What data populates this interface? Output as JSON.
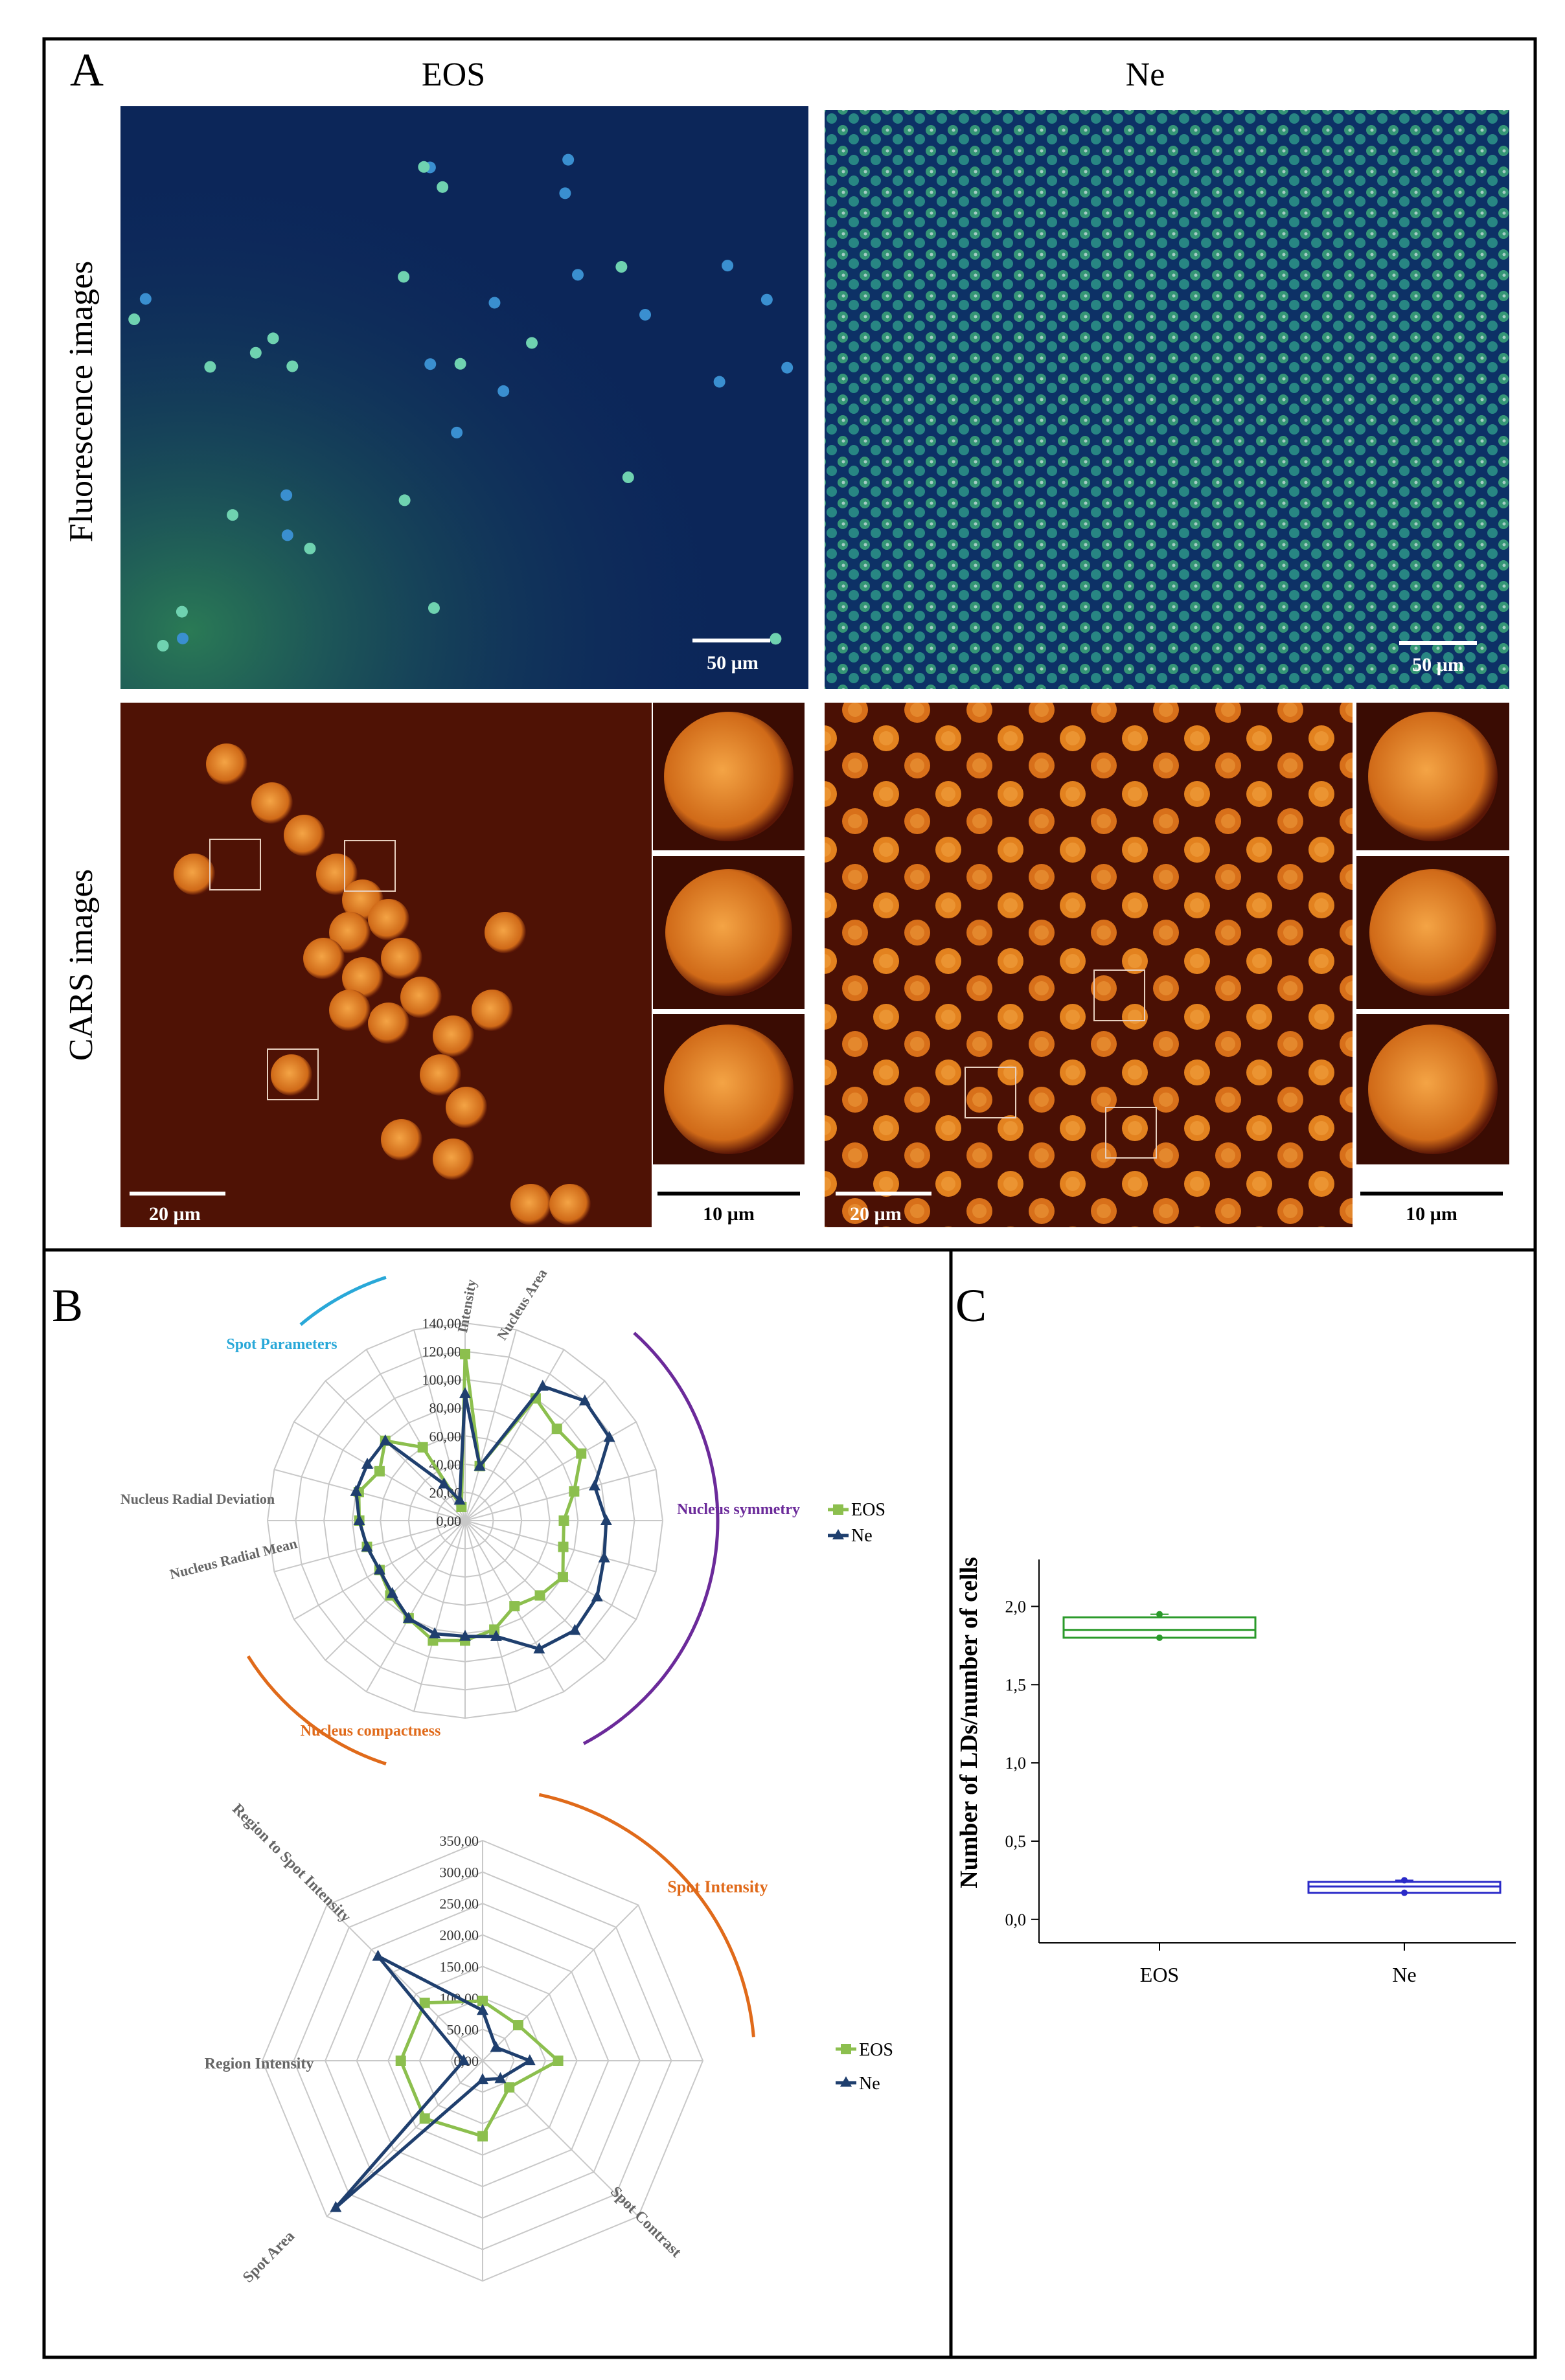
{
  "panel_a": {
    "letter": "A",
    "col_eos": "EOS",
    "col_ne": "Ne",
    "row_fluor": "Fluorescence  images",
    "row_cars": "CARS images",
    "scale_50": "50 µm",
    "scale_20": "20 µm",
    "scale_10": "10 µm",
    "colors": {
      "fluor_bg": "#0d2a5e",
      "cell_green": "#2fa870",
      "cars_bg": "#4a1004",
      "cell_orange": "#e07a1e"
    }
  },
  "panel_b": {
    "letter": "B",
    "radar1": {
      "group_labels": {
        "spot": "Spot Parameters",
        "symmetry": "Nucleus symmetry",
        "compactness": "Nucleus compactness"
      },
      "axis_labels": {
        "intensity": "Intensity",
        "nucleus_area": "Nucleus Area",
        "radial_dev": "Nucleus Radial Deviation",
        "radial_mean": "Nucleus Radial Mean"
      },
      "ticks": [
        "0,00",
        "20,00",
        "40,00",
        "60,00",
        "80,00",
        "100,00",
        "120,00",
        "140,00"
      ],
      "legend": {
        "eos": "EOS",
        "ne": "Ne"
      }
    },
    "radar2": {
      "group_labels": {
        "spot_intensity": "Spot Intensity"
      },
      "axis_labels": {
        "region_to_spot": "Region to Spot Intensity",
        "region_intensity": "Region Intensity",
        "spot_area": "Spot Area",
        "spot_contrast": "Spot Contrast"
      },
      "ticks": [
        "0,00",
        "50,00",
        "100,00",
        "150,00",
        "200,00",
        "250,00",
        "300,00",
        "350,00"
      ],
      "legend": {
        "eos": "EOS",
        "ne": "Ne"
      }
    }
  },
  "panel_c": {
    "letter": "C",
    "ylabel": "Number of LDs/number of cells",
    "categories": [
      "EOS",
      "Ne"
    ],
    "yticks": [
      "0,0",
      "0,5",
      "1,0",
      "1,5",
      "2,0"
    ]
  },
  "chart_data": [
    {
      "type": "radar",
      "axes_count": 24,
      "rmax": 140,
      "series": [
        {
          "name": "EOS",
          "color": "#8cbf4e",
          "values": [
            118,
            40,
            100,
            92,
            95,
            80,
            70,
            72,
            80,
            75,
            70,
            80,
            85,
            88,
            80,
            75,
            70,
            72,
            75,
            78,
            70,
            80,
            60,
            10
          ]
        },
        {
          "name": "Ne",
          "color": "#1f3f6e",
          "values": [
            90,
            40,
            110,
            120,
            118,
            95,
            100,
            102,
            108,
            110,
            105,
            85,
            82,
            83,
            80,
            73,
            70,
            72,
            75,
            80,
            80,
            80,
            30,
            15
          ]
        }
      ]
    },
    {
      "type": "radar",
      "axes_count": 8,
      "rmax": 350,
      "series": [
        {
          "name": "EOS",
          "color": "#8cbf4e",
          "values": [
            95,
            80,
            120,
            60,
            120,
            130,
            130,
            130
          ]
        },
        {
          "name": "Ne",
          "color": "#1f3f6e",
          "values": [
            80,
            30,
            75,
            40,
            30,
            330,
            30,
            235
          ]
        }
      ]
    },
    {
      "type": "box",
      "categories": [
        "EOS",
        "Ne"
      ],
      "ylim": [
        -0.15,
        2.3
      ],
      "series": [
        {
          "name": "EOS",
          "color": "#2a9a2a",
          "q1": 1.8,
          "median": 1.85,
          "q3": 1.93,
          "min": 1.8,
          "max": 1.95,
          "mean": 1.86
        },
        {
          "name": "Ne",
          "color": "#2a2ac8",
          "q1": 0.17,
          "median": 0.21,
          "q3": 0.24,
          "min": 0.17,
          "max": 0.25,
          "mean": 0.21
        }
      ]
    }
  ]
}
